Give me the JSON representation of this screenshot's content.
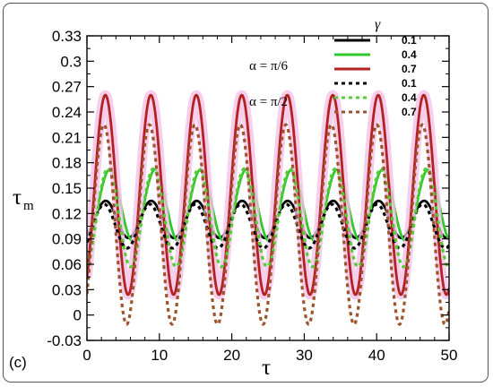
{
  "chart_data": {
    "type": "line",
    "panel_label": "(c)",
    "xlabel": "τ",
    "ylabel_main": "τ",
    "ylabel_sub": "m",
    "xlim": [
      0,
      50
    ],
    "ylim": [
      -0.03,
      0.33
    ],
    "x_ticks": [
      0,
      10,
      20,
      30,
      40,
      50
    ],
    "x_tick_labels": [
      "0",
      "10",
      "20",
      "30",
      "40",
      "50"
    ],
    "y_ticks": [
      -0.03,
      0,
      0.03,
      0.06,
      0.09,
      0.12,
      0.15,
      0.18,
      0.21,
      0.24,
      0.27,
      0.3,
      0.33
    ],
    "y_tick_labels": [
      "-0.03",
      "0",
      "0.03",
      "0.06",
      "0.09",
      "0.12",
      "0.15",
      "0.18",
      "0.21",
      "0.24",
      "0.27",
      "0.3",
      "0.33"
    ],
    "legend_title": "γ",
    "legend_position": "top-right",
    "group_labels": [
      "α = π/6",
      "α = π/2"
    ],
    "period": 6.28,
    "series": [
      {
        "name": "0.1",
        "group": "α = π/6",
        "color": "#000000",
        "dashed": false,
        "mean": 0.113,
        "amplitude": 0.022,
        "phase": 0.55,
        "halo": false
      },
      {
        "name": "0.4",
        "group": "α = π/6",
        "color": "#2fc82f",
        "dashed": false,
        "mean": 0.13,
        "amplitude": 0.042,
        "phase": 0.0,
        "halo": false
      },
      {
        "name": "0.7",
        "group": "α = π/6",
        "color": "#b22222",
        "dashed": false,
        "mean": 0.142,
        "amplitude": 0.118,
        "phase": 0.6,
        "halo": true
      },
      {
        "name": "0.1",
        "group": "α = π/2",
        "color": "#000000",
        "dashed": true,
        "mean": 0.105,
        "amplitude": 0.026,
        "phase": 0.75,
        "halo": false
      },
      {
        "name": "0.4",
        "group": "α = π/2",
        "color": "#55cc33",
        "dashed": true,
        "mean": 0.115,
        "amplitude": 0.058,
        "phase": 0.25,
        "halo": false
      },
      {
        "name": "0.7",
        "group": "α = π/2",
        "color": "#a0522d",
        "dashed": true,
        "mean": 0.107,
        "amplitude": 0.118,
        "phase": 0.8,
        "halo": false
      }
    ]
  }
}
